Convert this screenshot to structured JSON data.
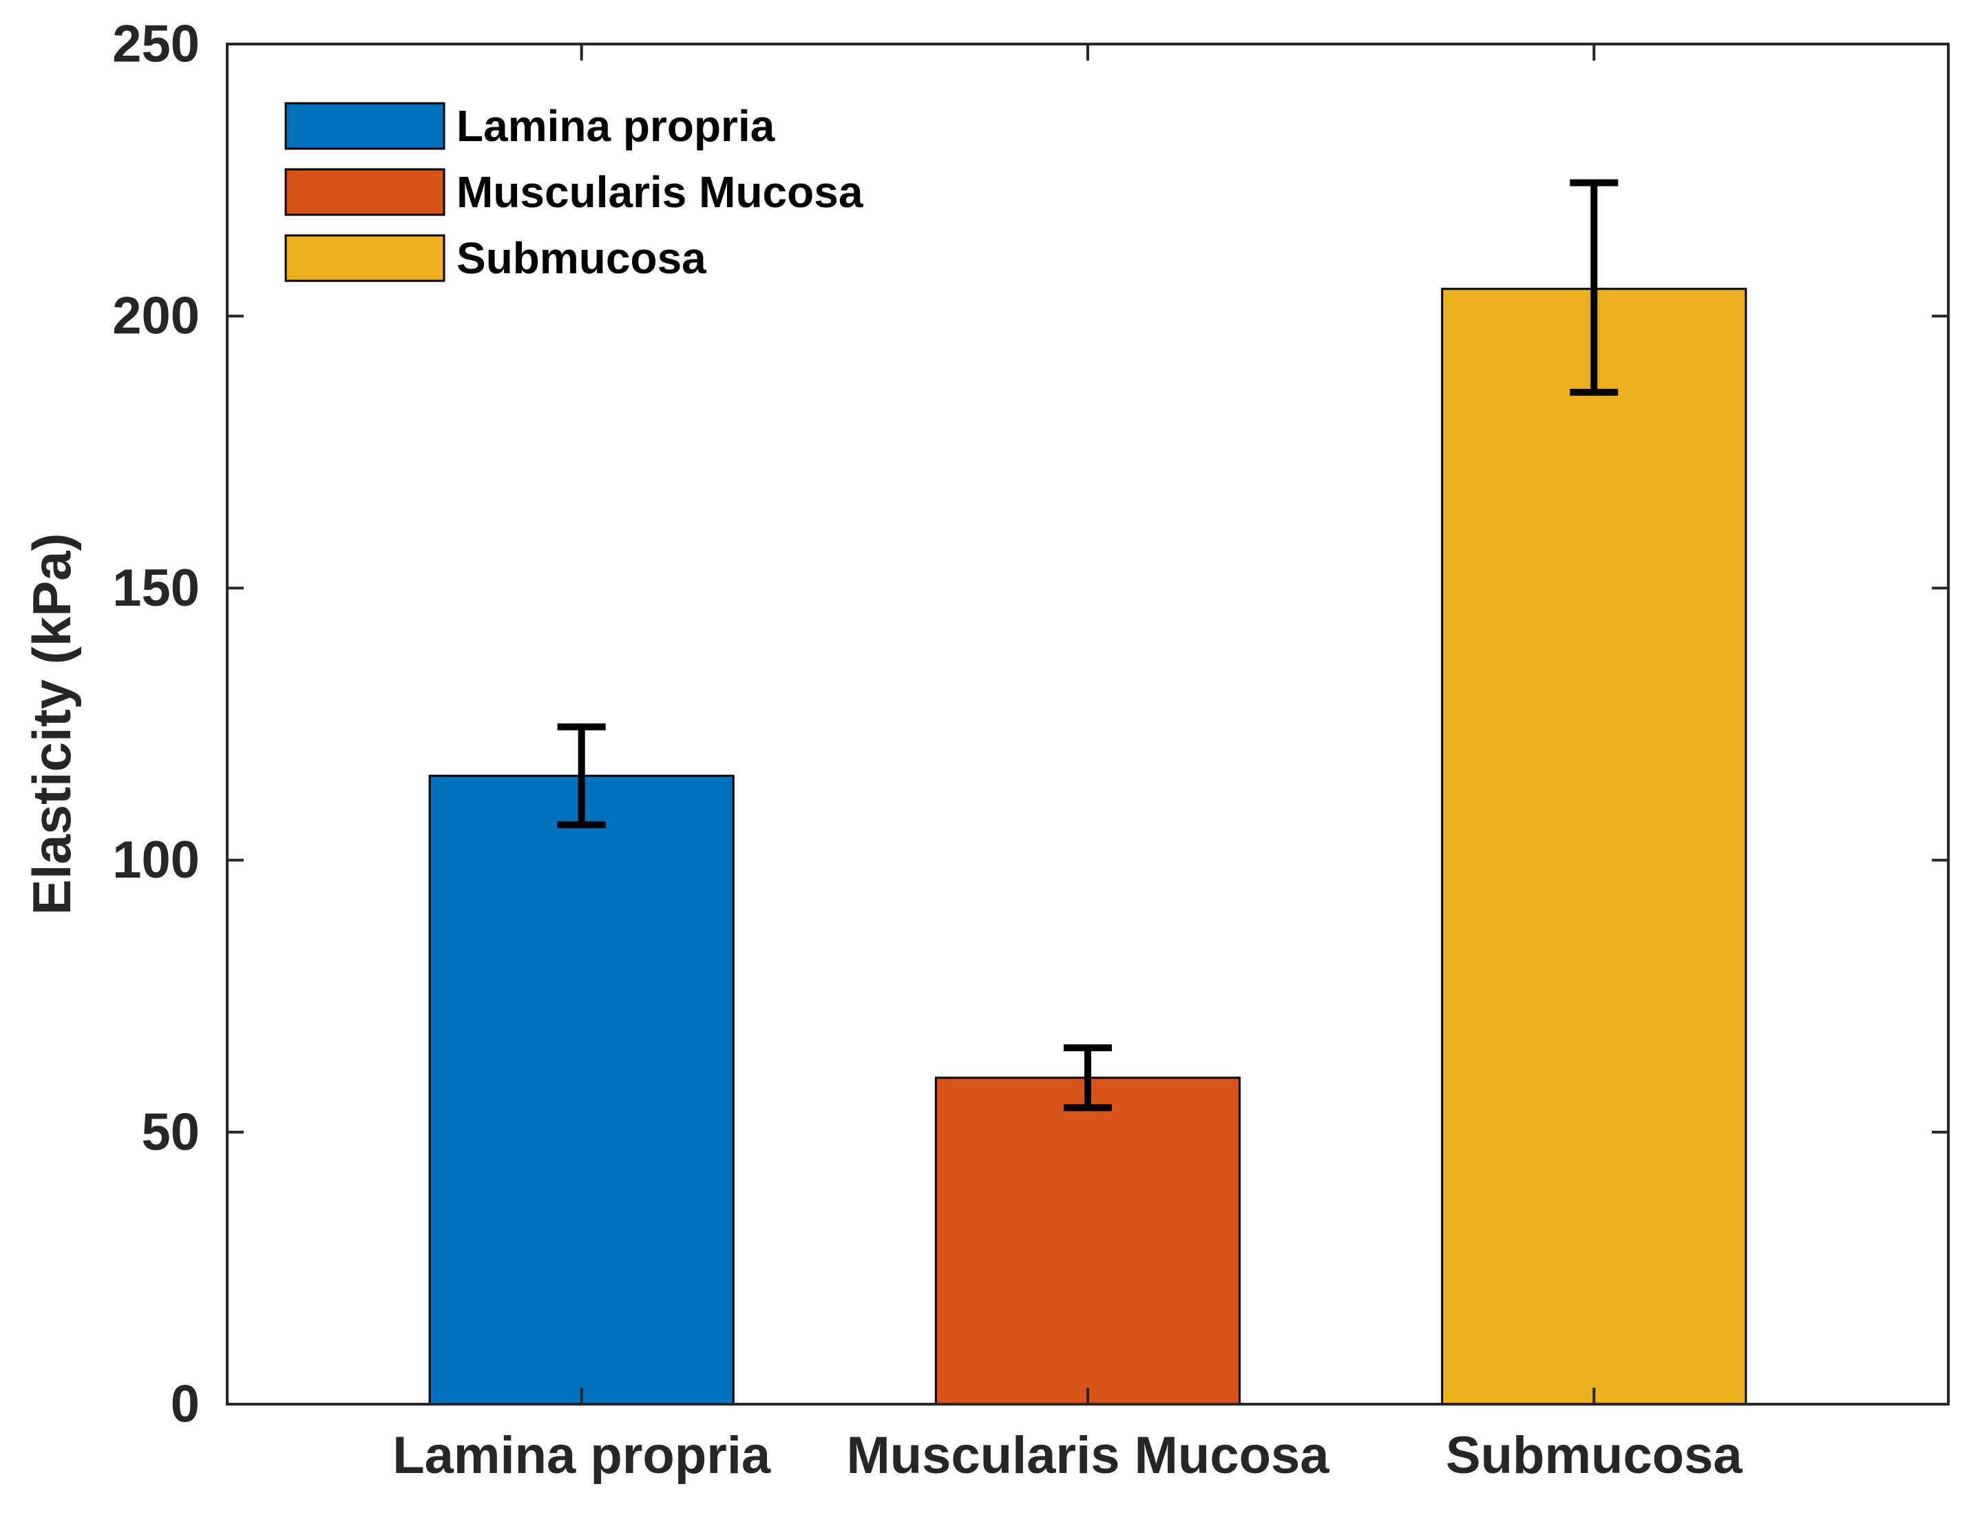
{
  "chart_data": {
    "type": "bar",
    "title": "",
    "xlabel": "",
    "ylabel": "Elasticity (kPa)",
    "ylim": [
      0,
      250
    ],
    "yticks": [
      0,
      50,
      100,
      150,
      200,
      250
    ],
    "grid": false,
    "legend_position": "top-left",
    "categories": [
      "Lamina propria",
      "Muscularis Mucosa",
      "Submucosa"
    ],
    "values": [
      115.5,
      60,
      205
    ],
    "error_bars": [
      {
        "low": 106.5,
        "high": 124.5
      },
      {
        "low": 54.5,
        "high": 65.5
      },
      {
        "low": 186,
        "high": 224.5
      }
    ],
    "colors": [
      "#0072BD",
      "#D95319",
      "#EDB120"
    ],
    "legend": [
      "Lamina propria",
      "Muscularis Mucosa",
      "Submucosa"
    ]
  }
}
